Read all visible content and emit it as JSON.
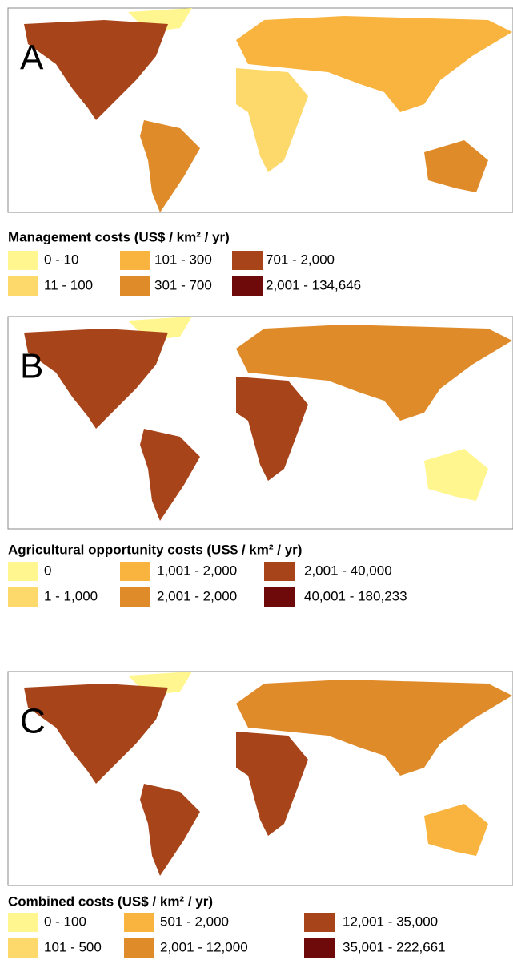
{
  "panels": [
    {
      "letter": "A",
      "legend_title": "Management costs (US$ / km² / yr)",
      "classes": [
        {
          "label": "0 - 10",
          "color": "#fff68f"
        },
        {
          "label": "11 - 100",
          "color": "#fdd86a"
        },
        {
          "label": "101 - 300",
          "color": "#f9b43f"
        },
        {
          "label": "301 - 700",
          "color": "#e08b2a"
        },
        {
          "label": "701 - 2,000",
          "color": "#a8441a"
        },
        {
          "label": "2,001 - 134,646",
          "color": "#6e0a0a"
        }
      ]
    },
    {
      "letter": "B",
      "legend_title": "Agricultural opportunity costs (US$ / km² / yr)",
      "classes": [
        {
          "label": "0",
          "color": "#fff68f"
        },
        {
          "label": "1 - 1,000",
          "color": "#fdd86a"
        },
        {
          "label": "1,001 - 2,000",
          "color": "#f9b43f"
        },
        {
          "label": "2,001 - 2,000",
          "color": "#e08b2a"
        },
        {
          "label": "2,001 - 40,000",
          "color": "#a8441a"
        },
        {
          "label": "40,001 - 180,233",
          "color": "#6e0a0a"
        }
      ]
    },
    {
      "letter": "C",
      "legend_title": "Combined costs (US$ / km² / yr)",
      "classes": [
        {
          "label": "0 - 100",
          "color": "#fff68f"
        },
        {
          "label": "101 - 500",
          "color": "#fdd86a"
        },
        {
          "label": "501 - 2,000",
          "color": "#f9b43f"
        },
        {
          "label": "2,001 - 12,000",
          "color": "#e08b2a"
        },
        {
          "label": "12,001 - 35,000",
          "color": "#a8441a"
        },
        {
          "label": "35,001 - 222,661",
          "color": "#6e0a0a"
        }
      ]
    }
  ]
}
